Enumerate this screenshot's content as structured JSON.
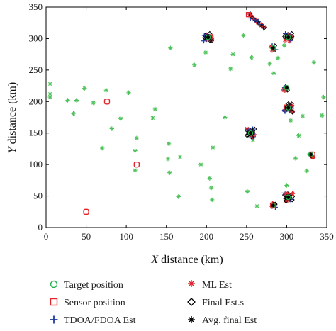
{
  "chart_data": {
    "type": "scatter",
    "xlabel_var": "X",
    "xlabel_rest": " distance (km)",
    "ylabel_var": "Y",
    "ylabel_rest": " distance (km)",
    "xlim": [
      0,
      350
    ],
    "ylim": [
      0,
      350
    ],
    "xticks": [
      "0",
      "50",
      "100",
      "150",
      "200",
      "250",
      "300",
      "350"
    ],
    "yticks": [
      "0",
      "50",
      "100",
      "150",
      "200",
      "250",
      "300",
      "350"
    ],
    "grid": false,
    "colors": {
      "target": "#22b14c",
      "sensor": "#e0262c",
      "tdoa": "#1f3a9e",
      "ml": "#e0262c",
      "final": "#000000",
      "avg": "#000000",
      "scatter_star": "#4cc259"
    },
    "legend": [
      {
        "label": "Target position",
        "marker": "circle"
      },
      {
        "label": "Sensor position",
        "marker": "square"
      },
      {
        "label": "TDOA/FDOA Est",
        "marker": "plus"
      },
      {
        "label": "ML Est",
        "marker": "star"
      },
      {
        "label": "Final Est.s",
        "marker": "diamond"
      },
      {
        "label": "Avg. final Est",
        "marker": "asterisk"
      }
    ],
    "sensors": [
      [
        50,
        25
      ],
      [
        76,
        200
      ],
      [
        113,
        100
      ],
      [
        332,
        116
      ],
      [
        283,
        35
      ]
    ],
    "green_stars": [
      [
        5,
        228
      ],
      [
        5,
        207
      ],
      [
        5,
        212
      ],
      [
        27,
        202
      ],
      [
        38,
        202
      ],
      [
        34,
        181
      ],
      [
        48,
        221
      ],
      [
        59,
        198
      ],
      [
        70,
        126
      ],
      [
        75,
        218
      ],
      [
        82,
        157
      ],
      [
        93,
        173
      ],
      [
        103,
        214
      ],
      [
        111,
        91
      ],
      [
        111,
        122
      ],
      [
        113,
        142
      ],
      [
        133,
        174
      ],
      [
        136,
        188
      ],
      [
        152,
        109
      ],
      [
        153,
        133
      ],
      [
        154,
        87
      ],
      [
        155,
        285
      ],
      [
        165,
        49
      ],
      [
        167,
        112
      ],
      [
        185,
        258
      ],
      [
        193,
        100
      ],
      [
        199,
        278
      ],
      [
        204,
        78
      ],
      [
        206,
        63
      ],
      [
        207,
        44
      ],
      [
        208,
        127
      ],
      [
        223,
        175
      ],
      [
        230,
        252
      ],
      [
        233,
        275
      ],
      [
        246,
        305
      ],
      [
        251,
        57
      ],
      [
        256,
        270
      ],
      [
        258,
        139
      ],
      [
        263,
        34
      ],
      [
        279,
        260
      ],
      [
        284,
        245
      ],
      [
        289,
        269
      ],
      [
        297,
        289
      ],
      [
        298,
        184
      ],
      [
        305,
        170
      ],
      [
        300,
        67
      ],
      [
        311,
        110
      ],
      [
        315,
        146
      ],
      [
        320,
        177
      ],
      [
        325,
        90
      ],
      [
        334,
        262
      ],
      [
        344,
        178
      ],
      [
        346,
        207
      ]
    ],
    "clusters": [
      {
        "x": 202,
        "y": 302,
        "type": "dense"
      },
      {
        "x": 302,
        "y": 302,
        "type": "dense"
      },
      {
        "x": 255,
        "y": 338,
        "type": "streak"
      },
      {
        "x": 300,
        "y": 222,
        "type": "small"
      },
      {
        "x": 302,
        "y": 190,
        "type": "dense"
      },
      {
        "x": 255,
        "y": 150,
        "type": "dense"
      },
      {
        "x": 302,
        "y": 48,
        "type": "dense"
      },
      {
        "x": 330,
        "y": 116,
        "type": "small"
      },
      {
        "x": 283,
        "y": 285,
        "type": "small"
      },
      {
        "x": 283,
        "y": 35,
        "type": "small"
      }
    ]
  }
}
